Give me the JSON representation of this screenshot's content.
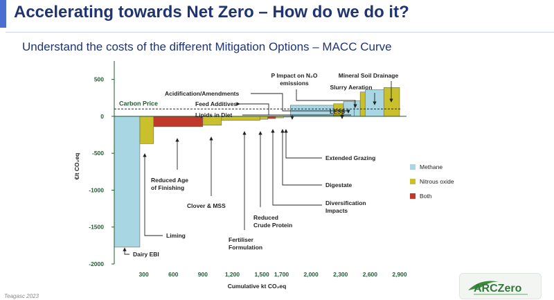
{
  "header": {
    "title": "Accelerating towards Net Zero – How do we do it?",
    "subtitle": "Understand the costs of the different Mitigation Options – MACC Curve"
  },
  "footer": {
    "source": "Teagasc 2023"
  },
  "logo": {
    "text": "ARCZero"
  },
  "colors": {
    "methane": "#a9d6e3",
    "nitrous_oxide": "#c9c02c",
    "both": "#c0392b",
    "axis": "#1f5a33",
    "title": "#1f3470"
  },
  "chart_data": {
    "type": "bar",
    "xlabel": "Cumulative kt CO₂eq",
    "ylabel": "€/t CO₂eq",
    "xlim": [
      0,
      2900
    ],
    "ylim": [
      -2000,
      750
    ],
    "xticks": [
      300,
      600,
      900,
      1200,
      1500,
      1700,
      2000,
      2300,
      2600,
      2900
    ],
    "xtick_labels": [
      "300",
      "600",
      "900",
      "1,200",
      "1,500",
      "1,700",
      "2,000",
      "2,300",
      "2,600",
      "2,900"
    ],
    "yticks": [
      500,
      0,
      -500,
      -1000,
      -1500,
      -2000
    ],
    "ytick_labels": [
      "500",
      "0",
      "-500",
      "-1000",
      "-1500",
      "-2000"
    ],
    "carbon_price": {
      "label": "Carbon Price",
      "value": 100
    },
    "legend": [
      {
        "name": "Methane",
        "color": "#a9d6e3"
      },
      {
        "name": "Nitrous oxide",
        "color": "#c9c02c"
      },
      {
        "name": "Both",
        "color": "#c0392b"
      }
    ],
    "legend_position": "right",
    "series": [
      {
        "name": "Dairy EBI",
        "gas": "Methane",
        "x0": 0,
        "x1": 260,
        "value": -1770
      },
      {
        "name": "Liming",
        "gas": "Nitrous oxide",
        "x0": 260,
        "x1": 400,
        "value": -370
      },
      {
        "name": "Reduced Age of Finishing",
        "gas": "Both",
        "x0": 400,
        "x1": 900,
        "value": -140
      },
      {
        "name": "Clover & MSS",
        "gas": "Nitrous oxide",
        "x0": 900,
        "x1": 1090,
        "value": -120
      },
      {
        "name": "Fertiliser Formulation",
        "gas": "Nitrous oxide",
        "x0": 1090,
        "x1": 1480,
        "value": -55
      },
      {
        "name": "Reduced Crude Protein",
        "gas": "Nitrous oxide",
        "x0": 1480,
        "x1": 1560,
        "value": -40
      },
      {
        "name": "Diversification Impacts",
        "gas": "Both",
        "x0": 1560,
        "x1": 1640,
        "value": -30
      },
      {
        "name": "Digestate",
        "gas": "Nitrous oxide",
        "x0": 1640,
        "x1": 1720,
        "value": -20
      },
      {
        "name": "Extended Grazing",
        "gas": "Methane",
        "x0": 1720,
        "x1": 1790,
        "value": -10
      },
      {
        "name": "Lipids in Diet",
        "gas": "Methane",
        "x0": 1790,
        "x1": 2230,
        "value": 150
      },
      {
        "name": "LESS",
        "gas": "Nitrous oxide",
        "x0": 2230,
        "x1": 2330,
        "value": 170
      },
      {
        "name": "Feed Additives",
        "gas": "Methane",
        "x0": 2330,
        "x1": 2440,
        "value": 200
      },
      {
        "name": "Acidification/Amendments",
        "gas": "Methane",
        "x0": 2440,
        "x1": 2500,
        "value": 210
      },
      {
        "name": "P Impact on N₂O emissions",
        "gas": "Nitrous oxide",
        "x0": 2500,
        "x1": 2550,
        "value": 330
      },
      {
        "name": "Slurry Aeration",
        "gas": "Methane",
        "x0": 2550,
        "x1": 2740,
        "value": 360
      },
      {
        "name": "Mineral Soil Drainage",
        "gas": "Nitrous oxide",
        "x0": 2740,
        "x1": 2900,
        "value": 390
      }
    ],
    "annotations": [
      {
        "text": [
          "P Impact on N₂O",
          "emissions"
        ]
      },
      {
        "text": [
          "Mineral Soil Drainage"
        ]
      },
      {
        "text": [
          "Slurry Aeration"
        ]
      },
      {
        "text": [
          "Acidification/Amendments"
        ]
      },
      {
        "text": [
          "Feed Additives"
        ]
      },
      {
        "text": [
          "Lipids in Diet"
        ]
      },
      {
        "text": [
          "LESS"
        ]
      },
      {
        "text": [
          "Extended Grazing"
        ]
      },
      {
        "text": [
          "Digestate"
        ]
      },
      {
        "text": [
          "Diversification",
          "Impacts"
        ]
      },
      {
        "text": [
          "Reduced",
          "Crude Protein"
        ]
      },
      {
        "text": [
          "Fertiliser",
          "Formulation"
        ]
      },
      {
        "text": [
          "Clover & MSS"
        ]
      },
      {
        "text": [
          "Reduced Age",
          "of Finishing"
        ]
      },
      {
        "text": [
          "Liming"
        ]
      },
      {
        "text": [
          "Dairy EBI"
        ]
      }
    ]
  }
}
